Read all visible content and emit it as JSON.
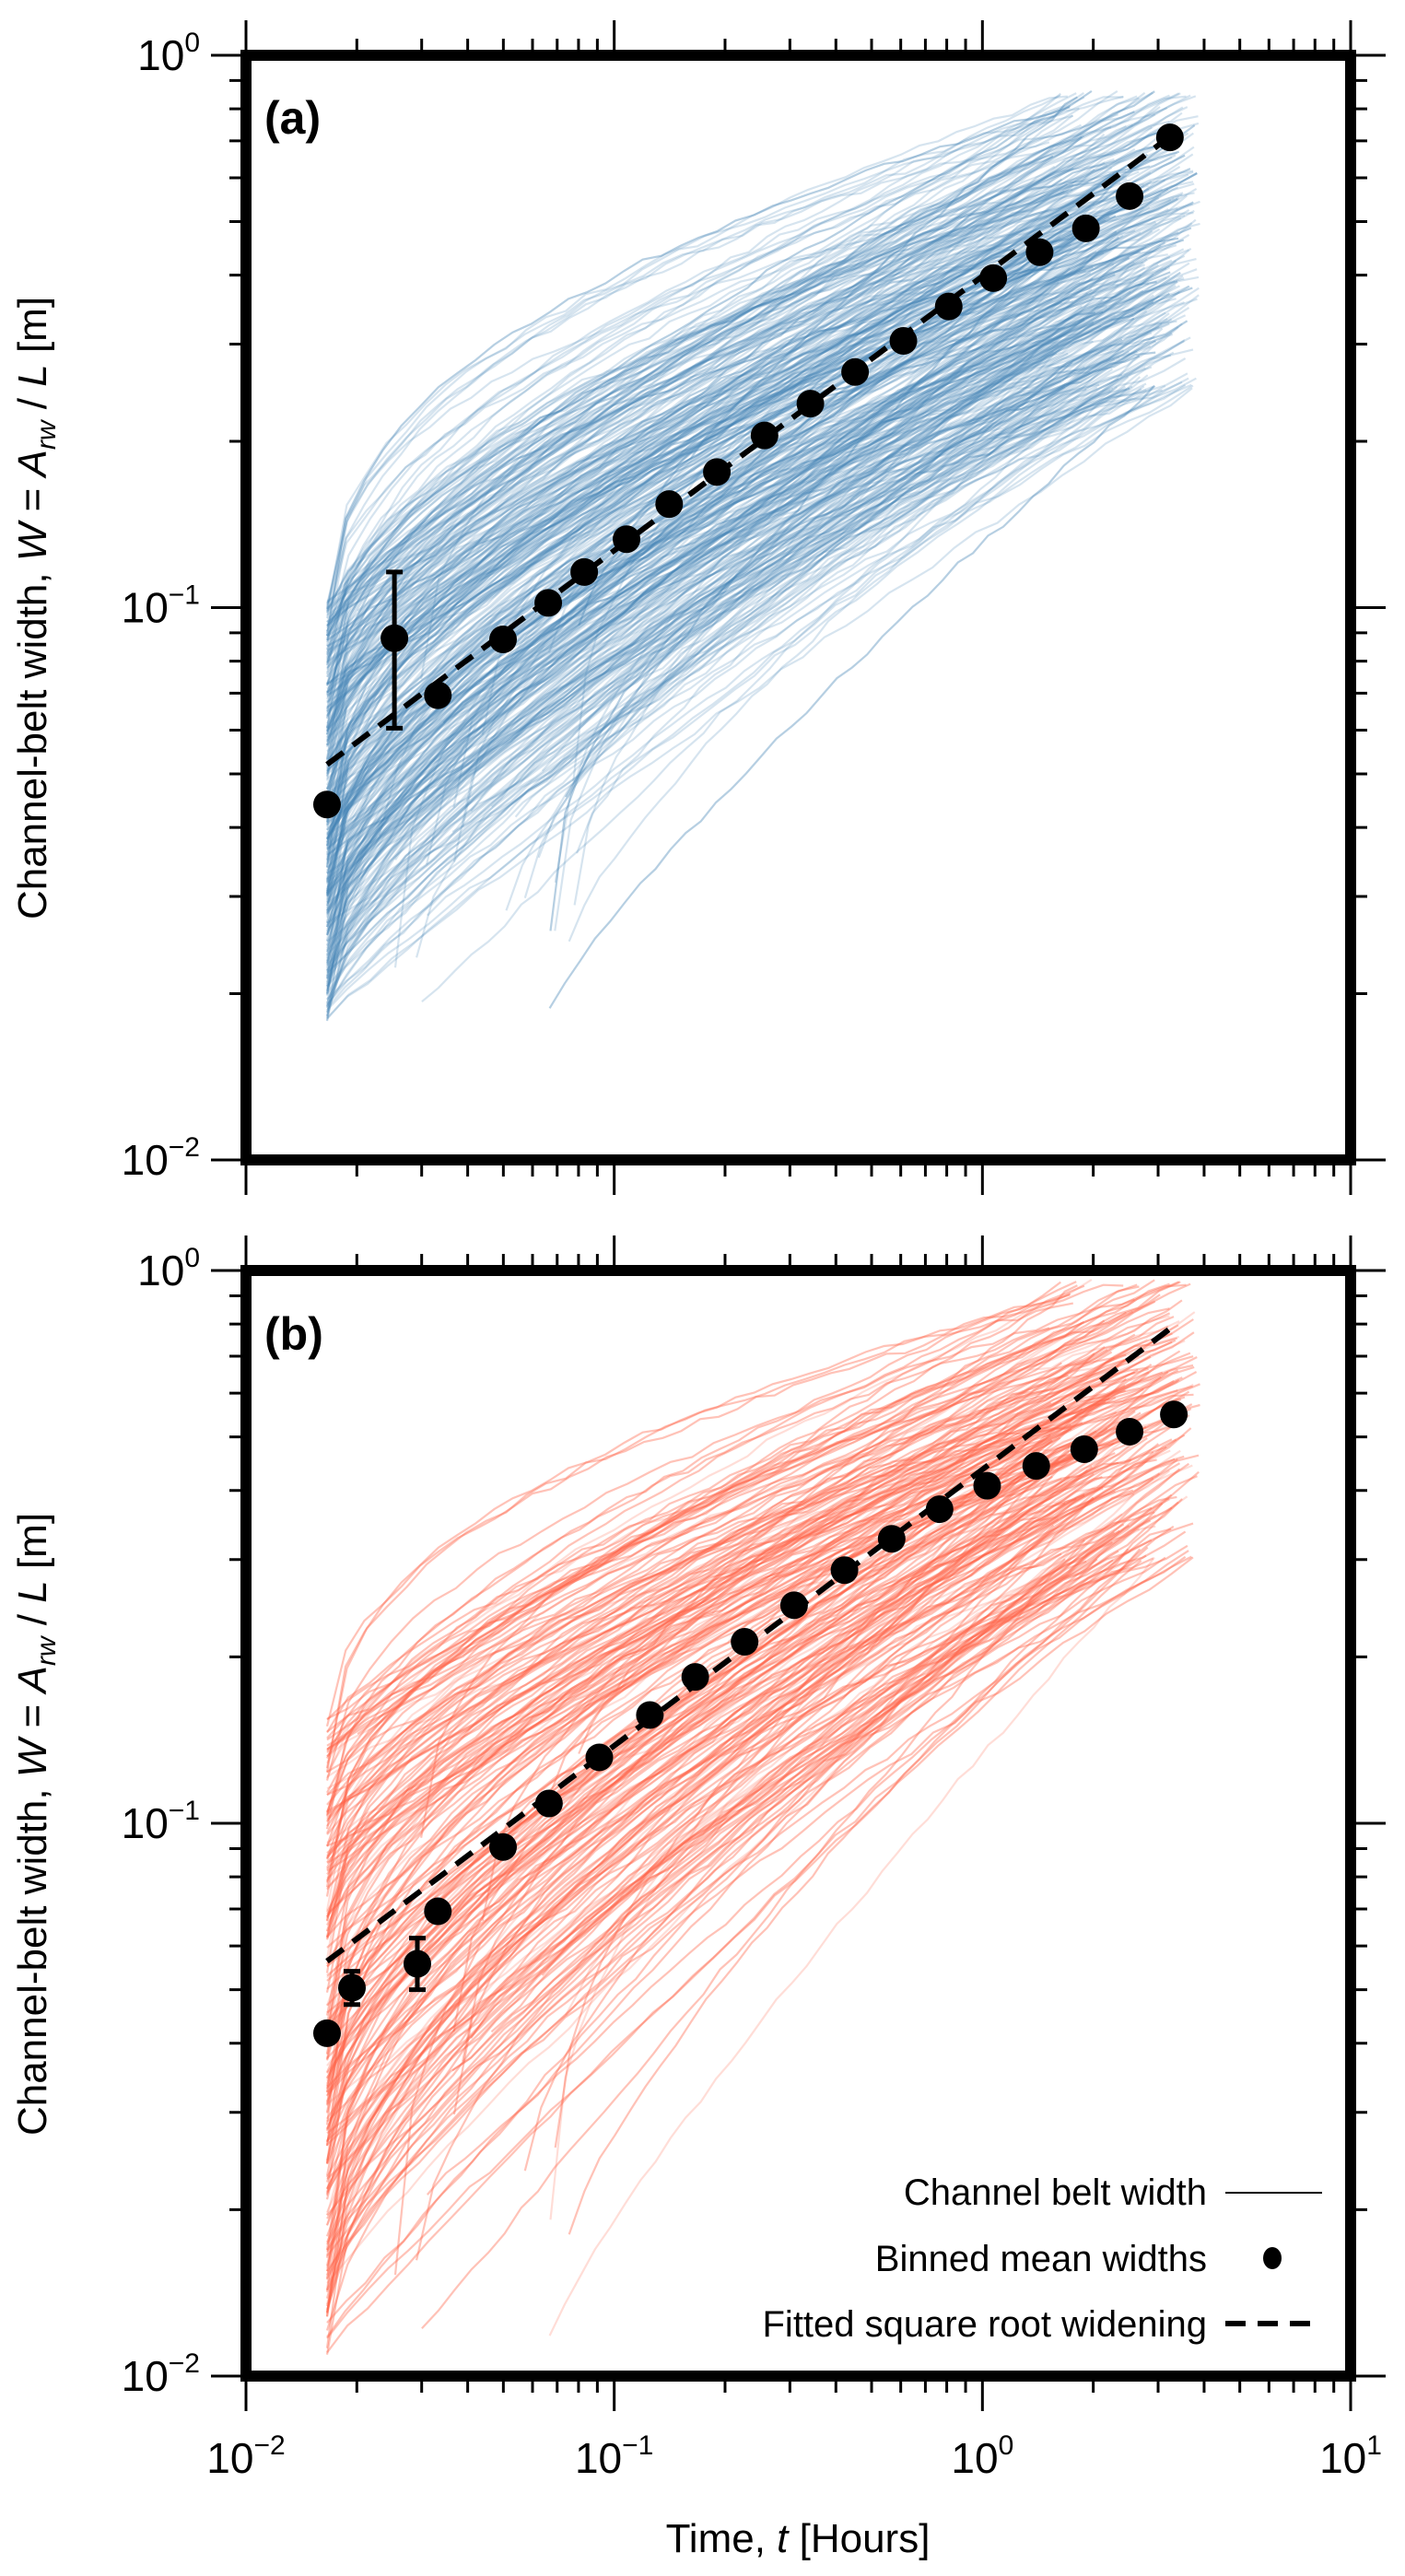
{
  "chart_data": [
    {
      "panel": "(a)",
      "type": "line",
      "xscale": "log",
      "yscale": "log",
      "xlim": [
        0.01,
        10
      ],
      "ylim": [
        0.01,
        1
      ],
      "xlabel": "Time, t [Hours]",
      "ylabel": "Channel-belt width, W = A_rw / L [m]",
      "xticks": [
        "10^-2",
        "10^-1",
        "10^0",
        "10^1"
      ],
      "yticks": [
        "10^-2",
        "10^-1",
        "10^0"
      ],
      "ensemble_color": "#4682b4",
      "ensemble": {
        "description": "Channel belt width traces (many faint lines)",
        "t_start": 0.0166,
        "t_end_range": [
          1.5,
          3.9
        ],
        "w_start_range": [
          0.018,
          0.105
        ],
        "w_end_range": [
          0.25,
          0.85
        ]
      },
      "series": [
        {
          "name": "Binned mean widths",
          "x": [
            0.0166,
            0.0253,
            0.0332,
            0.0499,
            0.0662,
            0.0829,
            0.108,
            0.141,
            0.19,
            0.256,
            0.341,
            0.451,
            0.61,
            0.81,
            1.07,
            1.43,
            1.91,
            2.51,
            3.23
          ],
          "y": [
            0.044,
            0.088,
            0.0694,
            0.0876,
            0.102,
            0.116,
            0.133,
            0.154,
            0.176,
            0.205,
            0.234,
            0.267,
            0.304,
            0.351,
            0.395,
            0.44,
            0.486,
            0.556,
            0.71
          ],
          "yerr_low": [
            null,
            0.0605,
            null,
            null,
            null,
            null,
            null,
            null,
            null,
            null,
            null,
            null,
            null,
            null,
            null,
            null,
            null,
            null,
            null
          ],
          "yerr_high": [
            null,
            0.116,
            null,
            null,
            null,
            null,
            null,
            null,
            null,
            null,
            null,
            null,
            null,
            null,
            null,
            null,
            null,
            null,
            null
          ]
        },
        {
          "name": "Fitted square root widening",
          "x": [
            0.0166,
            3.3
          ],
          "y": [
            0.052,
            0.72
          ]
        }
      ]
    },
    {
      "panel": "(b)",
      "type": "line",
      "xscale": "log",
      "yscale": "log",
      "xlim": [
        0.01,
        10
      ],
      "ylim": [
        0.01,
        1
      ],
      "xlabel": "Time, t [Hours]",
      "ylabel": "Channel-belt width, W = A_rw / L [m]",
      "xticks": [
        "10^-2",
        "10^-1",
        "10^0",
        "10^1"
      ],
      "yticks": [
        "10^-2",
        "10^-1",
        "10^0"
      ],
      "ensemble_color": "#ff6347",
      "ensemble": {
        "description": "Channel belt width traces (many faint lines)",
        "t_start": 0.0166,
        "t_end_range": [
          1.5,
          3.9
        ],
        "w_start_range": [
          0.011,
          0.16
        ],
        "w_end_range": [
          0.3,
          0.95
        ]
      },
      "series": [
        {
          "name": "Binned mean widths",
          "x": [
            0.0166,
            0.0194,
            0.0292,
            0.0332,
            0.0499,
            0.0665,
            0.0911,
            0.125,
            0.166,
            0.226,
            0.308,
            0.422,
            0.567,
            0.765,
            1.03,
            1.4,
            1.89,
            2.51,
            3.31
          ],
          "y": [
            0.0417,
            0.0504,
            0.0557,
            0.0693,
            0.0906,
            0.1086,
            0.1316,
            0.157,
            0.184,
            0.213,
            0.248,
            0.287,
            0.327,
            0.37,
            0.408,
            0.443,
            0.475,
            0.511,
            0.549
          ],
          "yerr_low": [
            null,
            0.047,
            0.05,
            null,
            null,
            null,
            null,
            null,
            null,
            null,
            null,
            null,
            null,
            null,
            null,
            null,
            null,
            null,
            null
          ],
          "yerr_high": [
            null,
            0.054,
            0.062,
            null,
            null,
            null,
            null,
            null,
            null,
            null,
            null,
            null,
            null,
            null,
            null,
            null,
            null,
            null,
            null
          ]
        },
        {
          "name": "Fitted square root widening",
          "x": [
            0.0166,
            3.26
          ],
          "y": [
            0.0563,
            0.788
          ]
        }
      ]
    }
  ],
  "labels": {
    "panel_a": "(a)",
    "panel_b": "(b)",
    "ylabel_prefix": "Channel-belt width, ",
    "ylabel_W": "W",
    "ylabel_eq": " = ",
    "ylabel_A": "A",
    "ylabel_sub": "rw",
    "ylabel_slash": " / ",
    "ylabel_L": "L",
    "ylabel_unit": " [m]",
    "xlabel_prefix": "Time, ",
    "xlabel_t": "t",
    "xlabel_unit": " [Hours]"
  },
  "legend": {
    "items": [
      {
        "label": "Channel belt width",
        "marker": "line"
      },
      {
        "label": "Binned mean widths",
        "marker": "dot"
      },
      {
        "label": "Fitted square root widening",
        "marker": "dashed"
      }
    ]
  }
}
